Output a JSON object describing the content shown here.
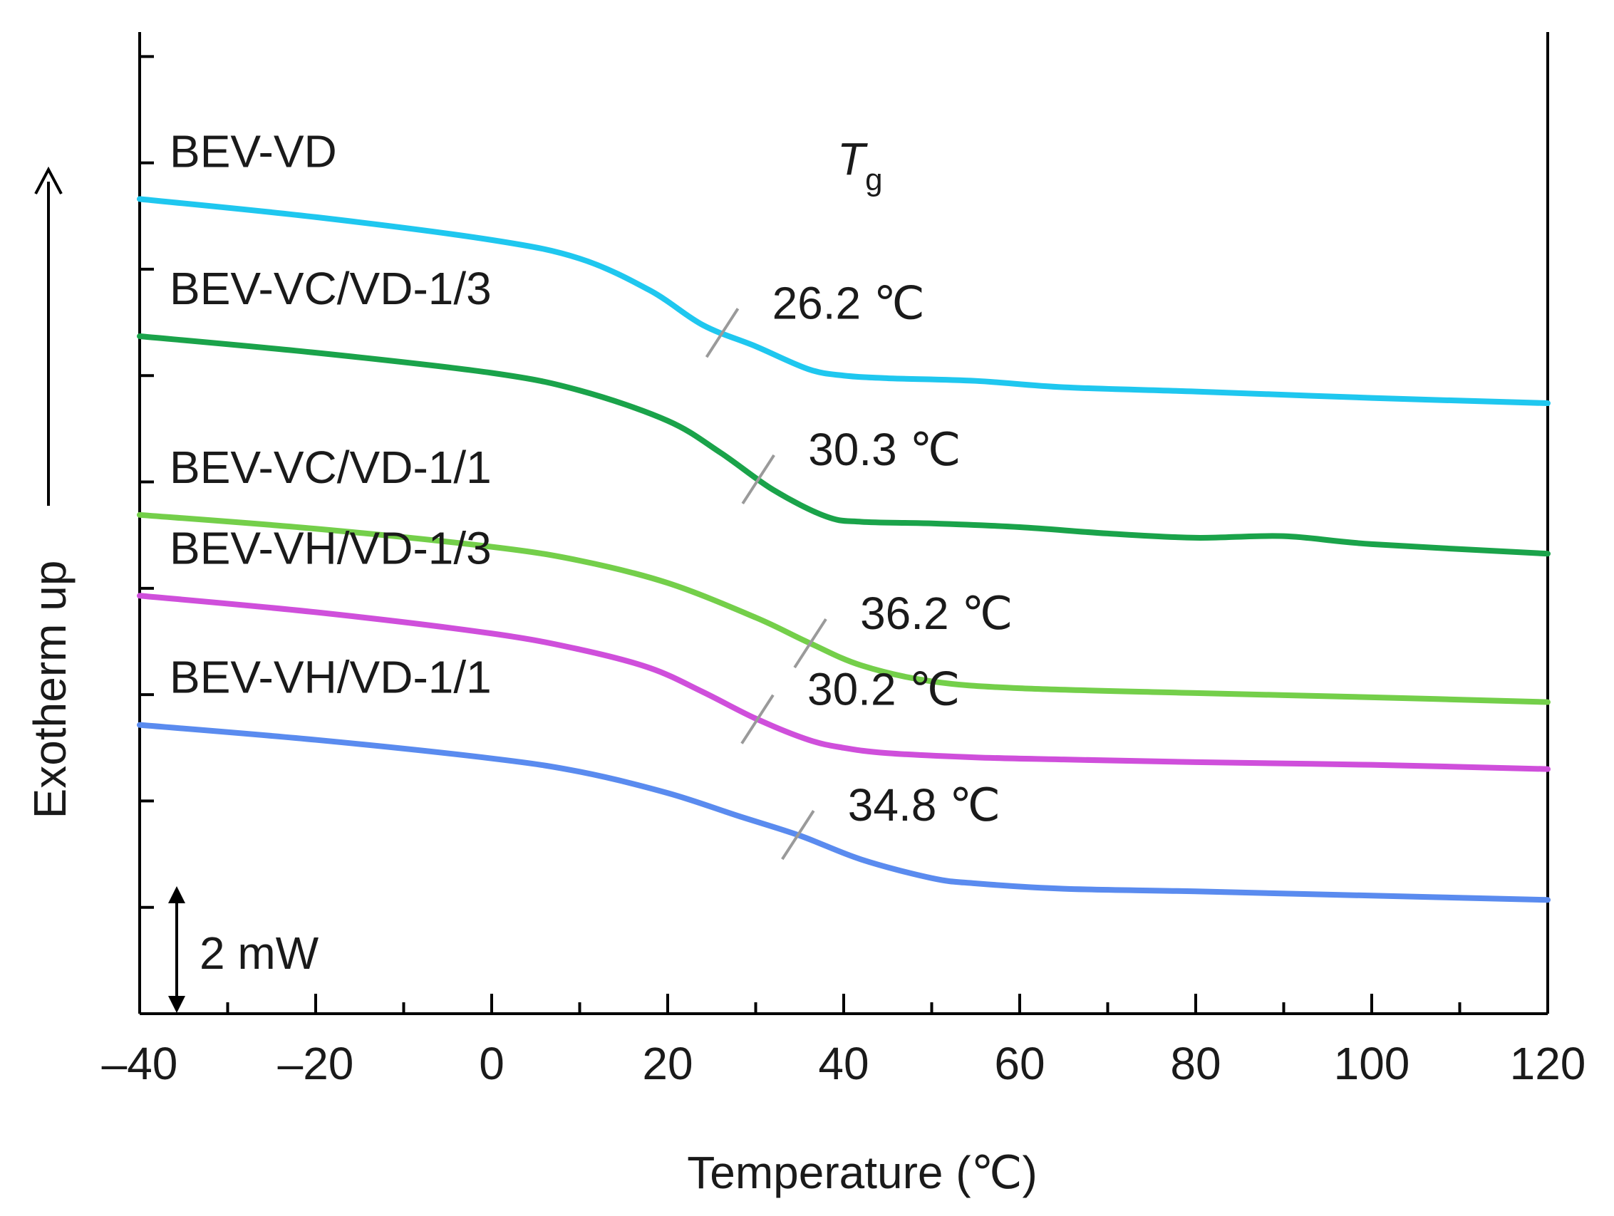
{
  "chart_data": {
    "type": "line",
    "title": "",
    "xlabel": "Temperature (℃)",
    "ylabel": "Exotherm up",
    "xlim": [
      -40,
      120
    ],
    "xticks": [
      -40,
      -20,
      0,
      20,
      40,
      60,
      80,
      100,
      120
    ],
    "xtick_labels": [
      "–40",
      "–20",
      "0",
      "20",
      "40",
      "60",
      "80",
      "100",
      "120"
    ],
    "ylim": [
      0,
      18.46
    ],
    "y_units": "mW (offset curves)",
    "scale_bar": {
      "label": "2 mW",
      "value": 2
    },
    "tg_title": {
      "main": "T",
      "sub": "g"
    },
    "series": [
      {
        "name": "BEV-VD",
        "color": "#1fc7ef",
        "tg": 26.2,
        "tg_label": "26.2 ℃",
        "x": [
          -40,
          -20,
          0,
          10,
          18,
          24,
          30,
          36,
          40,
          45,
          55,
          65,
          80,
          100,
          120
        ],
        "y": [
          15.32,
          14.98,
          14.55,
          14.2,
          13.6,
          12.95,
          12.55,
          12.12,
          12.0,
          11.95,
          11.9,
          11.78,
          11.7,
          11.58,
          11.48
        ]
      },
      {
        "name": "BEV-VC/VD-1/3",
        "color": "#1aa34a",
        "tg": 30.3,
        "tg_label": "30.3 ℃",
        "x": [
          -40,
          -20,
          0,
          10,
          20,
          26,
          32,
          38,
          42,
          50,
          60,
          70,
          80,
          90,
          100,
          120
        ],
        "y": [
          12.74,
          12.43,
          12.05,
          11.72,
          11.15,
          10.55,
          9.85,
          9.35,
          9.25,
          9.22,
          9.15,
          9.03,
          8.95,
          8.98,
          8.83,
          8.65
        ]
      },
      {
        "name": "BEV-VC/VD-1/1",
        "color": "#74cf4a",
        "tg": 36.2,
        "tg_label": "36.2 ℃",
        "x": [
          -40,
          -20,
          0,
          10,
          20,
          30,
          36,
          42,
          50,
          60,
          80,
          100,
          120
        ],
        "y": [
          9.38,
          9.12,
          8.78,
          8.52,
          8.1,
          7.45,
          6.98,
          6.55,
          6.25,
          6.12,
          6.03,
          5.95,
          5.86
        ]
      },
      {
        "name": "BEV-VH/VD-1/3",
        "color": "#cf4fdb",
        "tg": 30.2,
        "tg_label": "30.2 ℃",
        "x": [
          -40,
          -20,
          0,
          10,
          18,
          24,
          30,
          36,
          40,
          45,
          55,
          65,
          80,
          100,
          120
        ],
        "y": [
          7.86,
          7.55,
          7.15,
          6.85,
          6.5,
          6.05,
          5.55,
          5.15,
          5.0,
          4.9,
          4.82,
          4.78,
          4.73,
          4.68,
          4.6
        ]
      },
      {
        "name": "BEV-VH/VD-1/1",
        "color": "#5a8bef",
        "tg": 34.8,
        "tg_label": "34.8 ℃",
        "x": [
          -40,
          -20,
          0,
          10,
          20,
          28,
          35,
          42,
          50,
          55,
          65,
          80,
          100,
          120
        ],
        "y": [
          5.43,
          5.15,
          4.8,
          4.55,
          4.15,
          3.72,
          3.35,
          2.9,
          2.55,
          2.45,
          2.35,
          2.3,
          2.22,
          2.14
        ]
      }
    ]
  }
}
